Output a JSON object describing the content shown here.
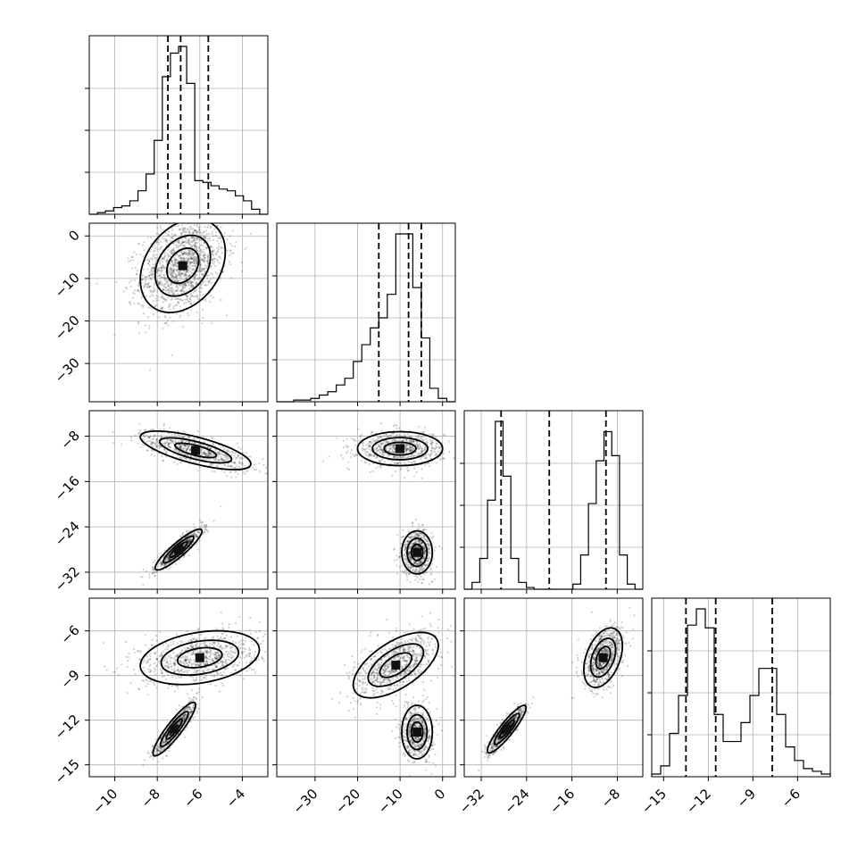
{
  "chart_data": {
    "type": "corner",
    "title": "",
    "grid": true,
    "params": [
      {
        "range": [
          -11.2,
          -2.8
        ],
        "ticks": [
          -10,
          -8,
          -6,
          -4
        ],
        "tick_labels": [
          "−10",
          "−8",
          "−6",
          "−4"
        ],
        "quantiles": [
          -7.5,
          -6.9,
          -5.6
        ]
      },
      {
        "range": [
          -39,
          3
        ],
        "ticks": [
          -30,
          -20,
          -10,
          0
        ],
        "tick_labels": [
          "−30",
          "−20",
          "−10",
          "0"
        ],
        "quantiles": [
          -15,
          -8,
          -5
        ]
      },
      {
        "range": [
          -35,
          -3.5
        ],
        "ticks": [
          -32,
          -24,
          -16,
          -8
        ],
        "tick_labels": [
          "−32",
          "−24",
          "−16",
          "−8"
        ],
        "quantiles": [
          -28.5,
          -20,
          -10
        ]
      },
      {
        "range": [
          -15.8,
          -3.8
        ],
        "ticks": [
          -15,
          -12,
          -9,
          -6
        ],
        "tick_labels": [
          "−15",
          "−12",
          "−9",
          "−6"
        ],
        "quantiles": [
          -13.5,
          -11.5,
          -7.7
        ]
      }
    ],
    "histograms": [
      {
        "bins": [
          -11.2,
          -2.8
        ],
        "counts": [
          0,
          1,
          2,
          4,
          5,
          8,
          14,
          24,
          44,
          82,
          96,
          100,
          78,
          20,
          19,
          17,
          15,
          14,
          11,
          8,
          3,
          0
        ]
      },
      {
        "bins": [
          -39,
          3
        ],
        "counts": [
          0,
          0,
          1,
          1,
          2,
          4,
          6,
          10,
          14,
          24,
          34,
          44,
          50,
          64,
          100,
          100,
          68,
          38,
          8,
          2,
          0
        ]
      },
      {
        "bins": [
          -35,
          -3.5
        ],
        "counts": [
          0,
          4,
          18,
          52,
          98,
          66,
          18,
          4,
          1,
          0,
          0,
          0,
          0,
          0,
          3,
          20,
          50,
          75,
          92,
          78,
          20,
          3,
          0
        ]
      },
      {
        "bins": [
          -15.8,
          -3.8
        ],
        "counts": [
          1,
          4,
          16,
          30,
          56,
          62,
          55,
          23,
          13,
          13,
          20,
          30,
          40,
          40,
          23,
          11,
          6,
          3,
          2,
          1
        ]
      }
    ],
    "pairs": [
      {
        "row": 1,
        "col": 0,
        "components": [
          {
            "center": [
              -6.8,
              -7
            ],
            "sd": [
              1.0,
              5.5
            ],
            "rho": 0.3,
            "weight": 1.0
          }
        ]
      },
      {
        "row": 2,
        "col": 0,
        "components": [
          {
            "center": [
              -6.2,
              -10.5
            ],
            "sd": [
              1.3,
              1.7
            ],
            "rho": -0.7,
            "weight": 0.5
          },
          {
            "center": [
              -7.0,
              -28
            ],
            "sd": [
              0.55,
              1.8
            ],
            "rho": 0.9,
            "weight": 0.5
          }
        ]
      },
      {
        "row": 2,
        "col": 1,
        "components": [
          {
            "center": [
              -10,
              -10.2
            ],
            "sd": [
              5,
              1.5
            ],
            "rho": 0.0,
            "weight": 0.5
          },
          {
            "center": [
              -6,
              -28.5
            ],
            "sd": [
              1.8,
              1.9
            ],
            "rho": 0.0,
            "weight": 0.5
          }
        ]
      },
      {
        "row": 3,
        "col": 0,
        "components": [
          {
            "center": [
              -6.0,
              -7.8
            ],
            "sd": [
              1.4,
              0.9
            ],
            "rho": 0.3,
            "weight": 0.55
          },
          {
            "center": [
              -7.2,
              -12.6
            ],
            "sd": [
              0.5,
              0.9
            ],
            "rho": 0.9,
            "weight": 0.45
          }
        ]
      },
      {
        "row": 3,
        "col": 1,
        "components": [
          {
            "center": [
              -11,
              -8.3
            ],
            "sd": [
              5,
              1.1
            ],
            "rho": 0.6,
            "weight": 0.55
          },
          {
            "center": [
              -6,
              -12.8
            ],
            "sd": [
              1.8,
              0.9
            ],
            "rho": 0.0,
            "weight": 0.45
          }
        ]
      },
      {
        "row": 3,
        "col": 2,
        "components": [
          {
            "center": [
              -10.5,
              -7.8
            ],
            "sd": [
              1.7,
              1.0
            ],
            "rho": 0.4,
            "weight": 0.55
          },
          {
            "center": [
              -27.5,
              -12.6
            ],
            "sd": [
              1.7,
              0.8
            ],
            "rho": 0.9,
            "weight": 0.45
          }
        ]
      }
    ]
  }
}
